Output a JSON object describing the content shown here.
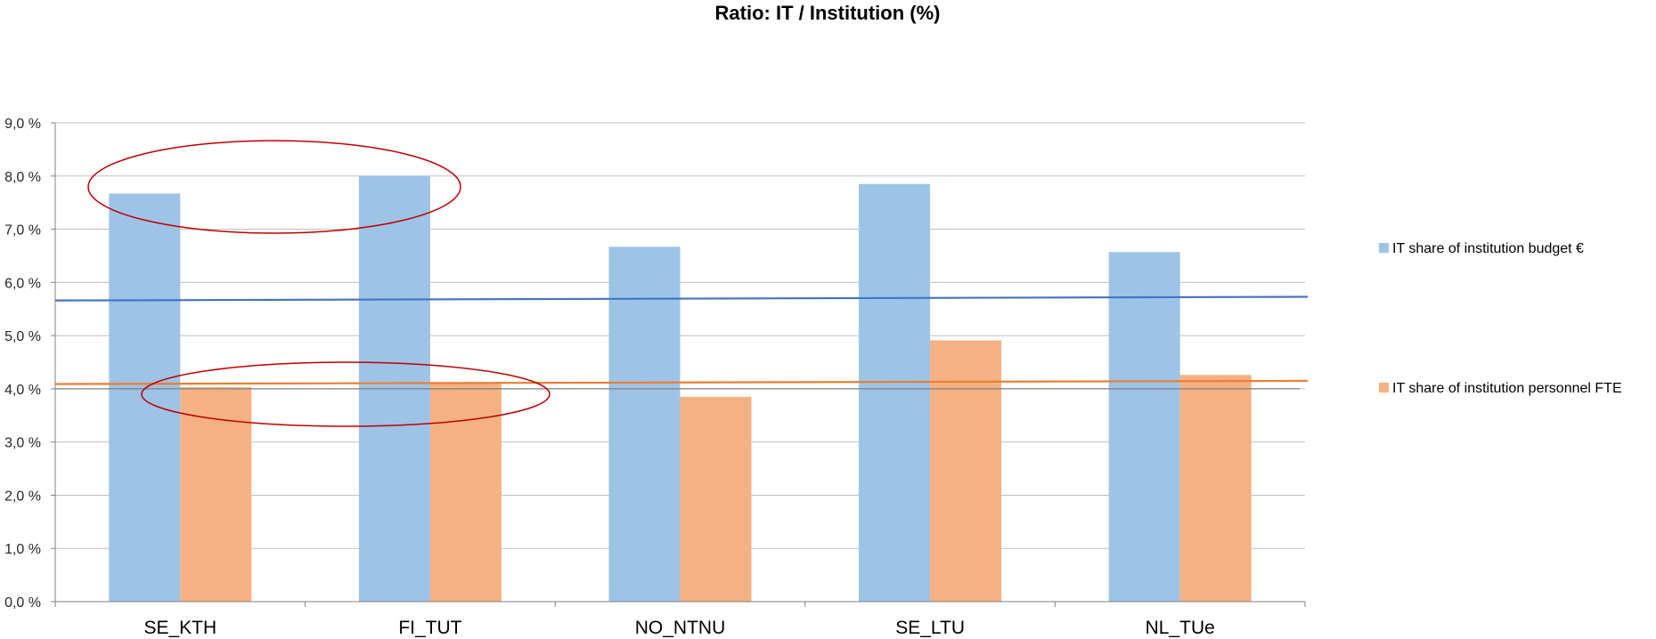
{
  "chart_data": {
    "type": "bar",
    "title": "Ratio: IT / Institution (%)",
    "xlabel": "",
    "ylabel": "",
    "categories": [
      "SE_KTH",
      "FI_TUT",
      "NO_NTNU",
      "SE_LTU",
      "NL_TUe"
    ],
    "series": [
      {
        "name": "IT share of institution budget €",
        "color": "#9DC3E6",
        "trend_color": "#4472C4",
        "values": [
          7.67,
          8.0,
          6.67,
          7.85,
          6.57
        ],
        "trendline": [
          5.66,
          5.73
        ]
      },
      {
        "name": "IT share of institution personnel FTE",
        "color": "#F4B183",
        "trend_color": "#ED7D31",
        "values": [
          4.03,
          4.12,
          3.85,
          4.91,
          4.26
        ],
        "trendline": [
          4.09,
          4.15
        ]
      }
    ],
    "ylim": [
      0,
      9
    ],
    "yticks": [
      0,
      1,
      2,
      3,
      4,
      5,
      6,
      7,
      8,
      9
    ],
    "ytick_labels": [
      "0,0 %",
      "1,0 %",
      "2,0 %",
      "3,0 %",
      "4,0 %",
      "5,0 %",
      "6,0 %",
      "7,0 %",
      "8,0 %",
      "9,0 %"
    ],
    "reference_line": 4.0,
    "grid": true,
    "legend_position": "right",
    "annotations": [
      {
        "type": "ellipse",
        "color": "#C00000",
        "around": "budget bars SE_KTH to FI_TUT"
      },
      {
        "type": "ellipse",
        "color": "#C00000",
        "around": "personnel bars SE_KTH to FI_TUT"
      }
    ]
  }
}
